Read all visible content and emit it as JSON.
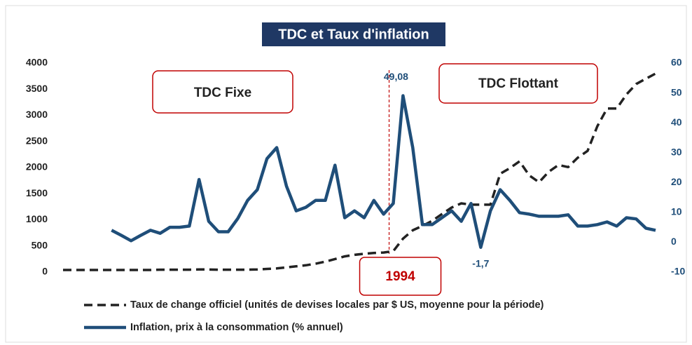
{
  "chart_data": {
    "type": "line",
    "title": "TDC et Taux d'inflation",
    "annotations": [
      "TDC Fixe",
      "TDC Flottant"
    ],
    "categories": [
      null,
      null,
      null,
      null,
      null,
      null,
      null,
      null,
      null,
      null,
      null,
      null,
      null,
      null,
      null,
      null,
      null,
      null,
      null,
      null,
      null,
      null,
      null,
      null,
      null,
      null,
      null,
      null,
      null,
      null,
      null,
      null,
      null,
      null,
      "1994",
      null,
      null,
      null,
      null,
      null,
      null,
      null,
      null,
      null,
      null,
      null,
      null,
      null,
      null,
      null,
      null,
      null,
      null,
      null,
      null,
      null,
      null,
      null,
      null,
      null,
      null,
      null
    ],
    "series": [
      {
        "name": "Taux de change officiel (unités de devises locales par $ US, moyenne pour la période)",
        "color": "#222222",
        "dash": true,
        "values": [
          40,
          40,
          40,
          40,
          40,
          40,
          40,
          40,
          40,
          40,
          45,
          45,
          45,
          45,
          50,
          50,
          45,
          45,
          45,
          45,
          50,
          60,
          70,
          90,
          110,
          130,
          160,
          200,
          250,
          300,
          330,
          350,
          365,
          375,
          400,
          640,
          800,
          885,
          980,
          1110,
          1235,
          1315,
          1290,
          1290,
          1290,
          1880,
          1990,
          2120,
          1850,
          1720,
          1920,
          2050,
          2010,
          2190,
          2320,
          2790,
          3130,
          3130,
          3400,
          3600,
          3700,
          3800
        ]
      },
      {
        "name": "Inflation, prix à la consommation (% annuel)",
        "color": "#1f4e79",
        "axis": "y2",
        "values": [
          null,
          null,
          null,
          null,
          null,
          4,
          2.3,
          0.5,
          2.3,
          4,
          3,
          5,
          5,
          5.4,
          21,
          7,
          3.5,
          3.5,
          8,
          14,
          17.6,
          28,
          31.7,
          18.8,
          10.5,
          11.7,
          14,
          14,
          25.8,
          8.2,
          10.5,
          8.2,
          14,
          9.4,
          13,
          49.08,
          31.7,
          5.9,
          5.9,
          8.2,
          10.5,
          7,
          13,
          -1.7,
          10.5,
          17.6,
          14,
          9.9,
          9.4,
          8.7,
          8.7,
          8.7,
          9.2,
          5.4,
          5.4,
          5.9,
          6.8,
          5.4,
          8.2,
          7.8,
          4.7,
          4
        ],
        "value_labels": [
          null,
          null,
          null,
          null,
          null,
          null,
          null,
          null,
          null,
          null,
          null,
          null,
          null,
          null,
          null,
          null,
          null,
          null,
          null,
          null,
          null,
          null,
          null,
          null,
          null,
          null,
          null,
          null,
          null,
          null,
          null,
          null,
          null,
          null,
          null,
          "49,08",
          null,
          null,
          null,
          null,
          null,
          null,
          null,
          "-1,7",
          null,
          null,
          null,
          null,
          null,
          null,
          null,
          null,
          null,
          null,
          null,
          null,
          null,
          null,
          null,
          null,
          null,
          null
        ]
      }
    ],
    "ylim": [
      0,
      4000
    ],
    "yticks": [
      0,
      500,
      1000,
      1500,
      2000,
      2500,
      3000,
      3500,
      4000
    ],
    "y2lim": [
      -10,
      60
    ],
    "y2ticks": [
      -10,
      0,
      10,
      20,
      30,
      40,
      50,
      60
    ]
  }
}
